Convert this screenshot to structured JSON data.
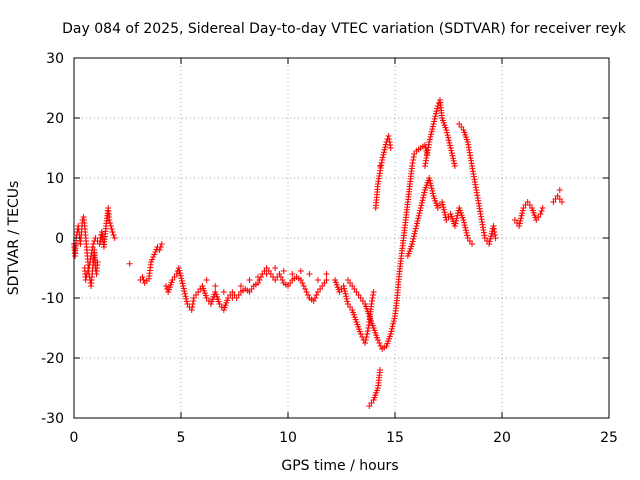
{
  "chart_data": {
    "type": "scatter",
    "title": "Day 084 of 2025, Sidereal Day-to-day VTEC variation (SDTVAR) for receiver reyk",
    "xlabel": "GPS time / hours",
    "ylabel": "SDTVAR / TECUs",
    "xlim": [
      0,
      25
    ],
    "ylim": [
      -30,
      30
    ],
    "xticks": [
      0,
      5,
      10,
      15,
      20,
      25
    ],
    "yticks": [
      -30,
      -20,
      -10,
      0,
      10,
      20,
      30
    ],
    "xtick_labels": [
      "0",
      "5",
      "10",
      "15",
      "20",
      "25"
    ],
    "ytick_labels": [
      "-30",
      "-20",
      "-10",
      "0",
      "10",
      "20",
      "30"
    ],
    "grid": true,
    "marker": "+",
    "color": "#ff0000",
    "series": [
      {
        "name": "SDTVAR",
        "points": [
          [
            0.0,
            -1
          ],
          [
            0.05,
            -3
          ],
          [
            0.1,
            0
          ],
          [
            0.15,
            1
          ],
          [
            0.2,
            2
          ],
          [
            0.25,
            0.5
          ],
          [
            0.3,
            -1
          ],
          [
            0.35,
            1
          ],
          [
            0.4,
            3
          ],
          [
            0.45,
            3.5
          ],
          [
            0.5,
            2
          ],
          [
            0.55,
            0
          ],
          [
            0.6,
            -2
          ],
          [
            0.65,
            -4
          ],
          [
            0.7,
            -6
          ],
          [
            0.75,
            -7
          ],
          [
            0.8,
            -8
          ],
          [
            0.85,
            -6
          ],
          [
            0.9,
            -4
          ],
          [
            0.95,
            -2
          ],
          [
            1.0,
            -5
          ],
          [
            1.05,
            -6
          ],
          [
            1.1,
            -4
          ],
          [
            0.5,
            -5
          ],
          [
            0.55,
            -7
          ],
          [
            0.6,
            -6
          ],
          [
            0.7,
            -5
          ],
          [
            0.8,
            -3
          ],
          [
            0.9,
            -1
          ],
          [
            1.0,
            0
          ],
          [
            1.2,
            -1
          ],
          [
            1.3,
            1
          ],
          [
            1.4,
            -1.5
          ],
          [
            1.5,
            2
          ],
          [
            1.6,
            5
          ],
          [
            1.65,
            3
          ],
          [
            1.8,
            1
          ],
          [
            1.9,
            0
          ],
          [
            2.6,
            -4.3
          ],
          [
            3.1,
            -7
          ],
          [
            3.2,
            -6.5
          ],
          [
            3.3,
            -7.5
          ],
          [
            3.5,
            -6.8
          ],
          [
            3.6,
            -4
          ],
          [
            3.9,
            -1.5
          ],
          [
            4.0,
            -2
          ],
          [
            4.1,
            -1
          ],
          [
            4.3,
            -8
          ],
          [
            4.4,
            -9
          ],
          [
            4.6,
            -7
          ],
          [
            4.8,
            -6
          ],
          [
            4.9,
            -5
          ],
          [
            5.1,
            -8
          ],
          [
            5.3,
            -11
          ],
          [
            5.5,
            -12
          ],
          [
            5.6,
            -10
          ],
          [
            5.8,
            -9
          ],
          [
            6.0,
            -8
          ],
          [
            6.2,
            -10
          ],
          [
            6.4,
            -11
          ],
          [
            6.6,
            -9
          ],
          [
            6.8,
            -11
          ],
          [
            7.0,
            -12
          ],
          [
            7.2,
            -10
          ],
          [
            7.4,
            -9
          ],
          [
            7.6,
            -10
          ],
          [
            7.8,
            -9
          ],
          [
            8.0,
            -8.5
          ],
          [
            8.2,
            -9
          ],
          [
            8.4,
            -8
          ],
          [
            8.6,
            -7.5
          ],
          [
            8.8,
            -6
          ],
          [
            9.0,
            -5
          ],
          [
            9.2,
            -6
          ],
          [
            9.4,
            -7
          ],
          [
            9.6,
            -6
          ],
          [
            9.8,
            -7.5
          ],
          [
            10.0,
            -8
          ],
          [
            10.2,
            -7
          ],
          [
            10.4,
            -6.5
          ],
          [
            10.6,
            -7
          ],
          [
            10.8,
            -8.5
          ],
          [
            11.0,
            -10
          ],
          [
            11.2,
            -10.5
          ],
          [
            11.4,
            -9
          ],
          [
            11.6,
            -8
          ],
          [
            11.8,
            -7
          ],
          [
            6.2,
            -7
          ],
          [
            6.6,
            -8
          ],
          [
            7.0,
            -9
          ],
          [
            7.4,
            -10
          ],
          [
            7.8,
            -8
          ],
          [
            8.2,
            -7
          ],
          [
            8.6,
            -6.5
          ],
          [
            9.0,
            -6
          ],
          [
            9.4,
            -5
          ],
          [
            9.8,
            -5.5
          ],
          [
            10.2,
            -6
          ],
          [
            10.6,
            -5.5
          ],
          [
            11.0,
            -6
          ],
          [
            11.4,
            -7
          ],
          [
            11.8,
            -6
          ],
          [
            12.2,
            -7
          ],
          [
            12.4,
            -9
          ],
          [
            12.6,
            -8
          ],
          [
            12.8,
            -11
          ],
          [
            13.0,
            -12
          ],
          [
            13.2,
            -14
          ],
          [
            13.4,
            -16
          ],
          [
            13.6,
            -17.5
          ],
          [
            13.7,
            -16
          ],
          [
            13.8,
            -14
          ],
          [
            13.9,
            -11
          ],
          [
            14.0,
            -9
          ],
          [
            12.8,
            -7
          ],
          [
            13.0,
            -8
          ],
          [
            13.2,
            -9
          ],
          [
            13.4,
            -10
          ],
          [
            13.6,
            -11
          ],
          [
            13.8,
            -13
          ],
          [
            14.0,
            -15
          ],
          [
            14.2,
            -17
          ],
          [
            14.4,
            -18.5
          ],
          [
            14.6,
            -18
          ],
          [
            14.8,
            -16
          ],
          [
            15.0,
            -13
          ],
          [
            15.1,
            -10
          ],
          [
            15.2,
            -6
          ],
          [
            15.3,
            -3
          ],
          [
            15.4,
            0
          ],
          [
            15.5,
            3
          ],
          [
            15.6,
            6
          ],
          [
            15.7,
            9
          ],
          [
            15.8,
            12
          ],
          [
            15.9,
            14
          ],
          [
            16.0,
            14.5
          ],
          [
            16.2,
            15
          ],
          [
            16.4,
            15.5
          ],
          [
            16.5,
            14
          ],
          [
            15.6,
            -3
          ],
          [
            15.8,
            -1
          ],
          [
            16.0,
            2
          ],
          [
            16.2,
            5
          ],
          [
            16.4,
            8
          ],
          [
            16.6,
            10
          ],
          [
            16.8,
            7
          ],
          [
            17.0,
            5
          ],
          [
            17.2,
            6
          ],
          [
            17.4,
            3
          ],
          [
            17.6,
            4
          ],
          [
            17.8,
            2
          ],
          [
            18.0,
            5
          ],
          [
            18.2,
            3
          ],
          [
            18.4,
            0
          ],
          [
            18.6,
            -1
          ],
          [
            16.4,
            12
          ],
          [
            16.6,
            16
          ],
          [
            16.8,
            19
          ],
          [
            17.0,
            22
          ],
          [
            17.1,
            23
          ],
          [
            17.2,
            20
          ],
          [
            17.4,
            18
          ],
          [
            17.6,
            15
          ],
          [
            17.8,
            12
          ],
          [
            18.0,
            19
          ],
          [
            18.2,
            18
          ],
          [
            18.4,
            16
          ],
          [
            18.6,
            12
          ],
          [
            18.8,
            8
          ],
          [
            19.0,
            4
          ],
          [
            19.2,
            0
          ],
          [
            19.4,
            -1
          ],
          [
            19.6,
            2
          ],
          [
            19.7,
            0
          ],
          [
            13.8,
            -28
          ],
          [
            14.0,
            -27
          ],
          [
            14.2,
            -25
          ],
          [
            14.3,
            -22
          ],
          [
            14.1,
            5
          ],
          [
            14.2,
            9
          ],
          [
            14.4,
            13
          ],
          [
            14.6,
            16
          ],
          [
            14.7,
            17
          ],
          [
            14.8,
            15
          ],
          [
            14.3,
            12
          ],
          [
            20.6,
            3
          ],
          [
            20.8,
            2
          ],
          [
            21.0,
            5
          ],
          [
            21.2,
            6
          ],
          [
            21.4,
            5
          ],
          [
            21.6,
            3
          ],
          [
            21.8,
            4
          ],
          [
            21.9,
            5
          ],
          [
            22.4,
            6
          ],
          [
            22.6,
            7
          ],
          [
            22.8,
            6
          ],
          [
            22.7,
            8
          ]
        ]
      }
    ]
  }
}
